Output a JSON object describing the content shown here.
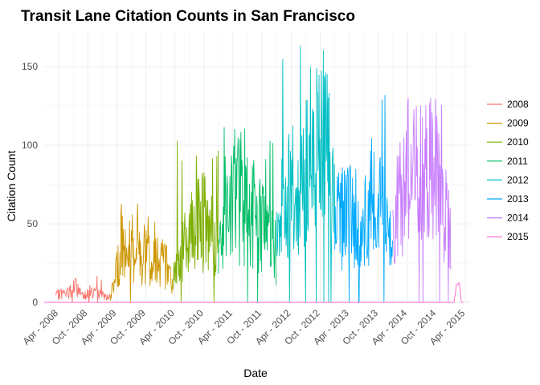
{
  "chart_data": {
    "type": "line",
    "title": "Transit Lane Citation Counts in San Francisco",
    "xlabel": "Date",
    "ylabel": "Citation Count",
    "x_range": [
      "2008-01-01",
      "2015-04-30"
    ],
    "ylim": [
      0,
      172
    ],
    "y_ticks": [
      0,
      50,
      100,
      150
    ],
    "x_ticks": [
      "Apr - 2008",
      "Oct - 2008",
      "Apr - 2009",
      "Oct - 2009",
      "Apr - 2010",
      "Oct - 2010",
      "Apr - 2011",
      "Oct - 2011",
      "Apr - 2012",
      "Oct - 2012",
      "Apr - 2013",
      "Oct - 2013",
      "Apr - 2014",
      "Oct - 2014",
      "Apr - 2015"
    ],
    "x_tick_dates": [
      "2008-04-01",
      "2008-10-01",
      "2009-04-01",
      "2009-10-01",
      "2010-04-01",
      "2010-10-01",
      "2011-04-01",
      "2011-10-01",
      "2012-04-01",
      "2012-10-01",
      "2013-04-01",
      "2013-10-01",
      "2014-04-01",
      "2014-10-01",
      "2015-04-01"
    ],
    "grid": true,
    "legend_position": "right",
    "series": [
      {
        "name": "2008",
        "color": "#F8766D",
        "start": "2008-03-15",
        "end": "2009-02-20",
        "level_profile": [
          4,
          6,
          5,
          8,
          10,
          6,
          5,
          7,
          6,
          5,
          4,
          3
        ],
        "peak_max": 18
      },
      {
        "name": "2009",
        "color": "#CD9600",
        "start": "2009-02-20",
        "end": "2010-03-20",
        "level_profile": [
          2,
          18,
          28,
          30,
          35,
          32,
          30,
          33,
          28,
          30,
          26,
          22,
          10
        ],
        "peak_max": 64
      },
      {
        "name": "2010",
        "color": "#7CAE00",
        "start": "2010-03-20",
        "end": "2010-12-31",
        "level_profile": [
          15,
          25,
          35,
          40,
          50,
          55,
          45,
          40,
          35
        ],
        "peak_max": 107
      },
      {
        "name": "2011",
        "color": "#00BE67",
        "start": "2010-12-31",
        "end": "2011-12-31",
        "level_profile": [
          30,
          55,
          60,
          70,
          65,
          55,
          60,
          55,
          50,
          45,
          40,
          30
        ],
        "peak_max": 118
      },
      {
        "name": "2012",
        "color": "#00BFC4",
        "start": "2011-12-31",
        "end": "2012-12-31",
        "level_profile": [
          45,
          60,
          65,
          70,
          65,
          75,
          80,
          85,
          95,
          100,
          80,
          60
        ],
        "peak_max": 167
      },
      {
        "name": "2013",
        "color": "#00A9FF",
        "start": "2012-12-31",
        "end": "2013-12-31",
        "level_profile": [
          45,
          55,
          65,
          60,
          55,
          45,
          55,
          60,
          55,
          60,
          45,
          30
        ],
        "peak_max": 134
      },
      {
        "name": "2014",
        "color": "#C77CFF",
        "start": "2013-12-31",
        "end": "2014-12-31",
        "level_profile": [
          40,
          60,
          80,
          90,
          85,
          75,
          80,
          90,
          80,
          70,
          55,
          40
        ],
        "peak_max": 130
      },
      {
        "name": "2015",
        "color": "#FF61CC",
        "start": "2008-01-01",
        "end": "2015-03-20",
        "level_profile": [
          0
        ],
        "peak_max": 16,
        "note_shape": "flat-zero-baseline-with-early-2015-spike"
      }
    ]
  }
}
